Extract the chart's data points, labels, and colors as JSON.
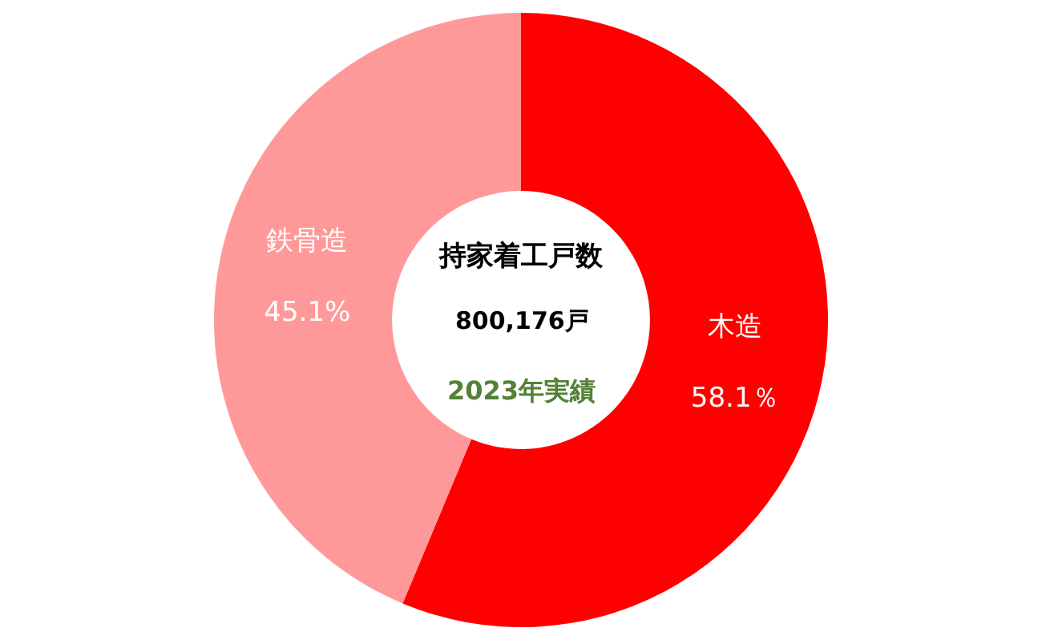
{
  "chart_data": {
    "type": "donut",
    "categories": [
      "木造",
      "鉄骨造"
    ],
    "values": [
      58.1,
      45.1
    ],
    "value_labels": [
      "58.1％",
      "45.1%"
    ],
    "colors": [
      "#ff0000",
      "#ff9999"
    ],
    "annotations": [
      "持家着工戸数",
      "800,176戸",
      "2023年実績"
    ],
    "legend": false
  }
}
